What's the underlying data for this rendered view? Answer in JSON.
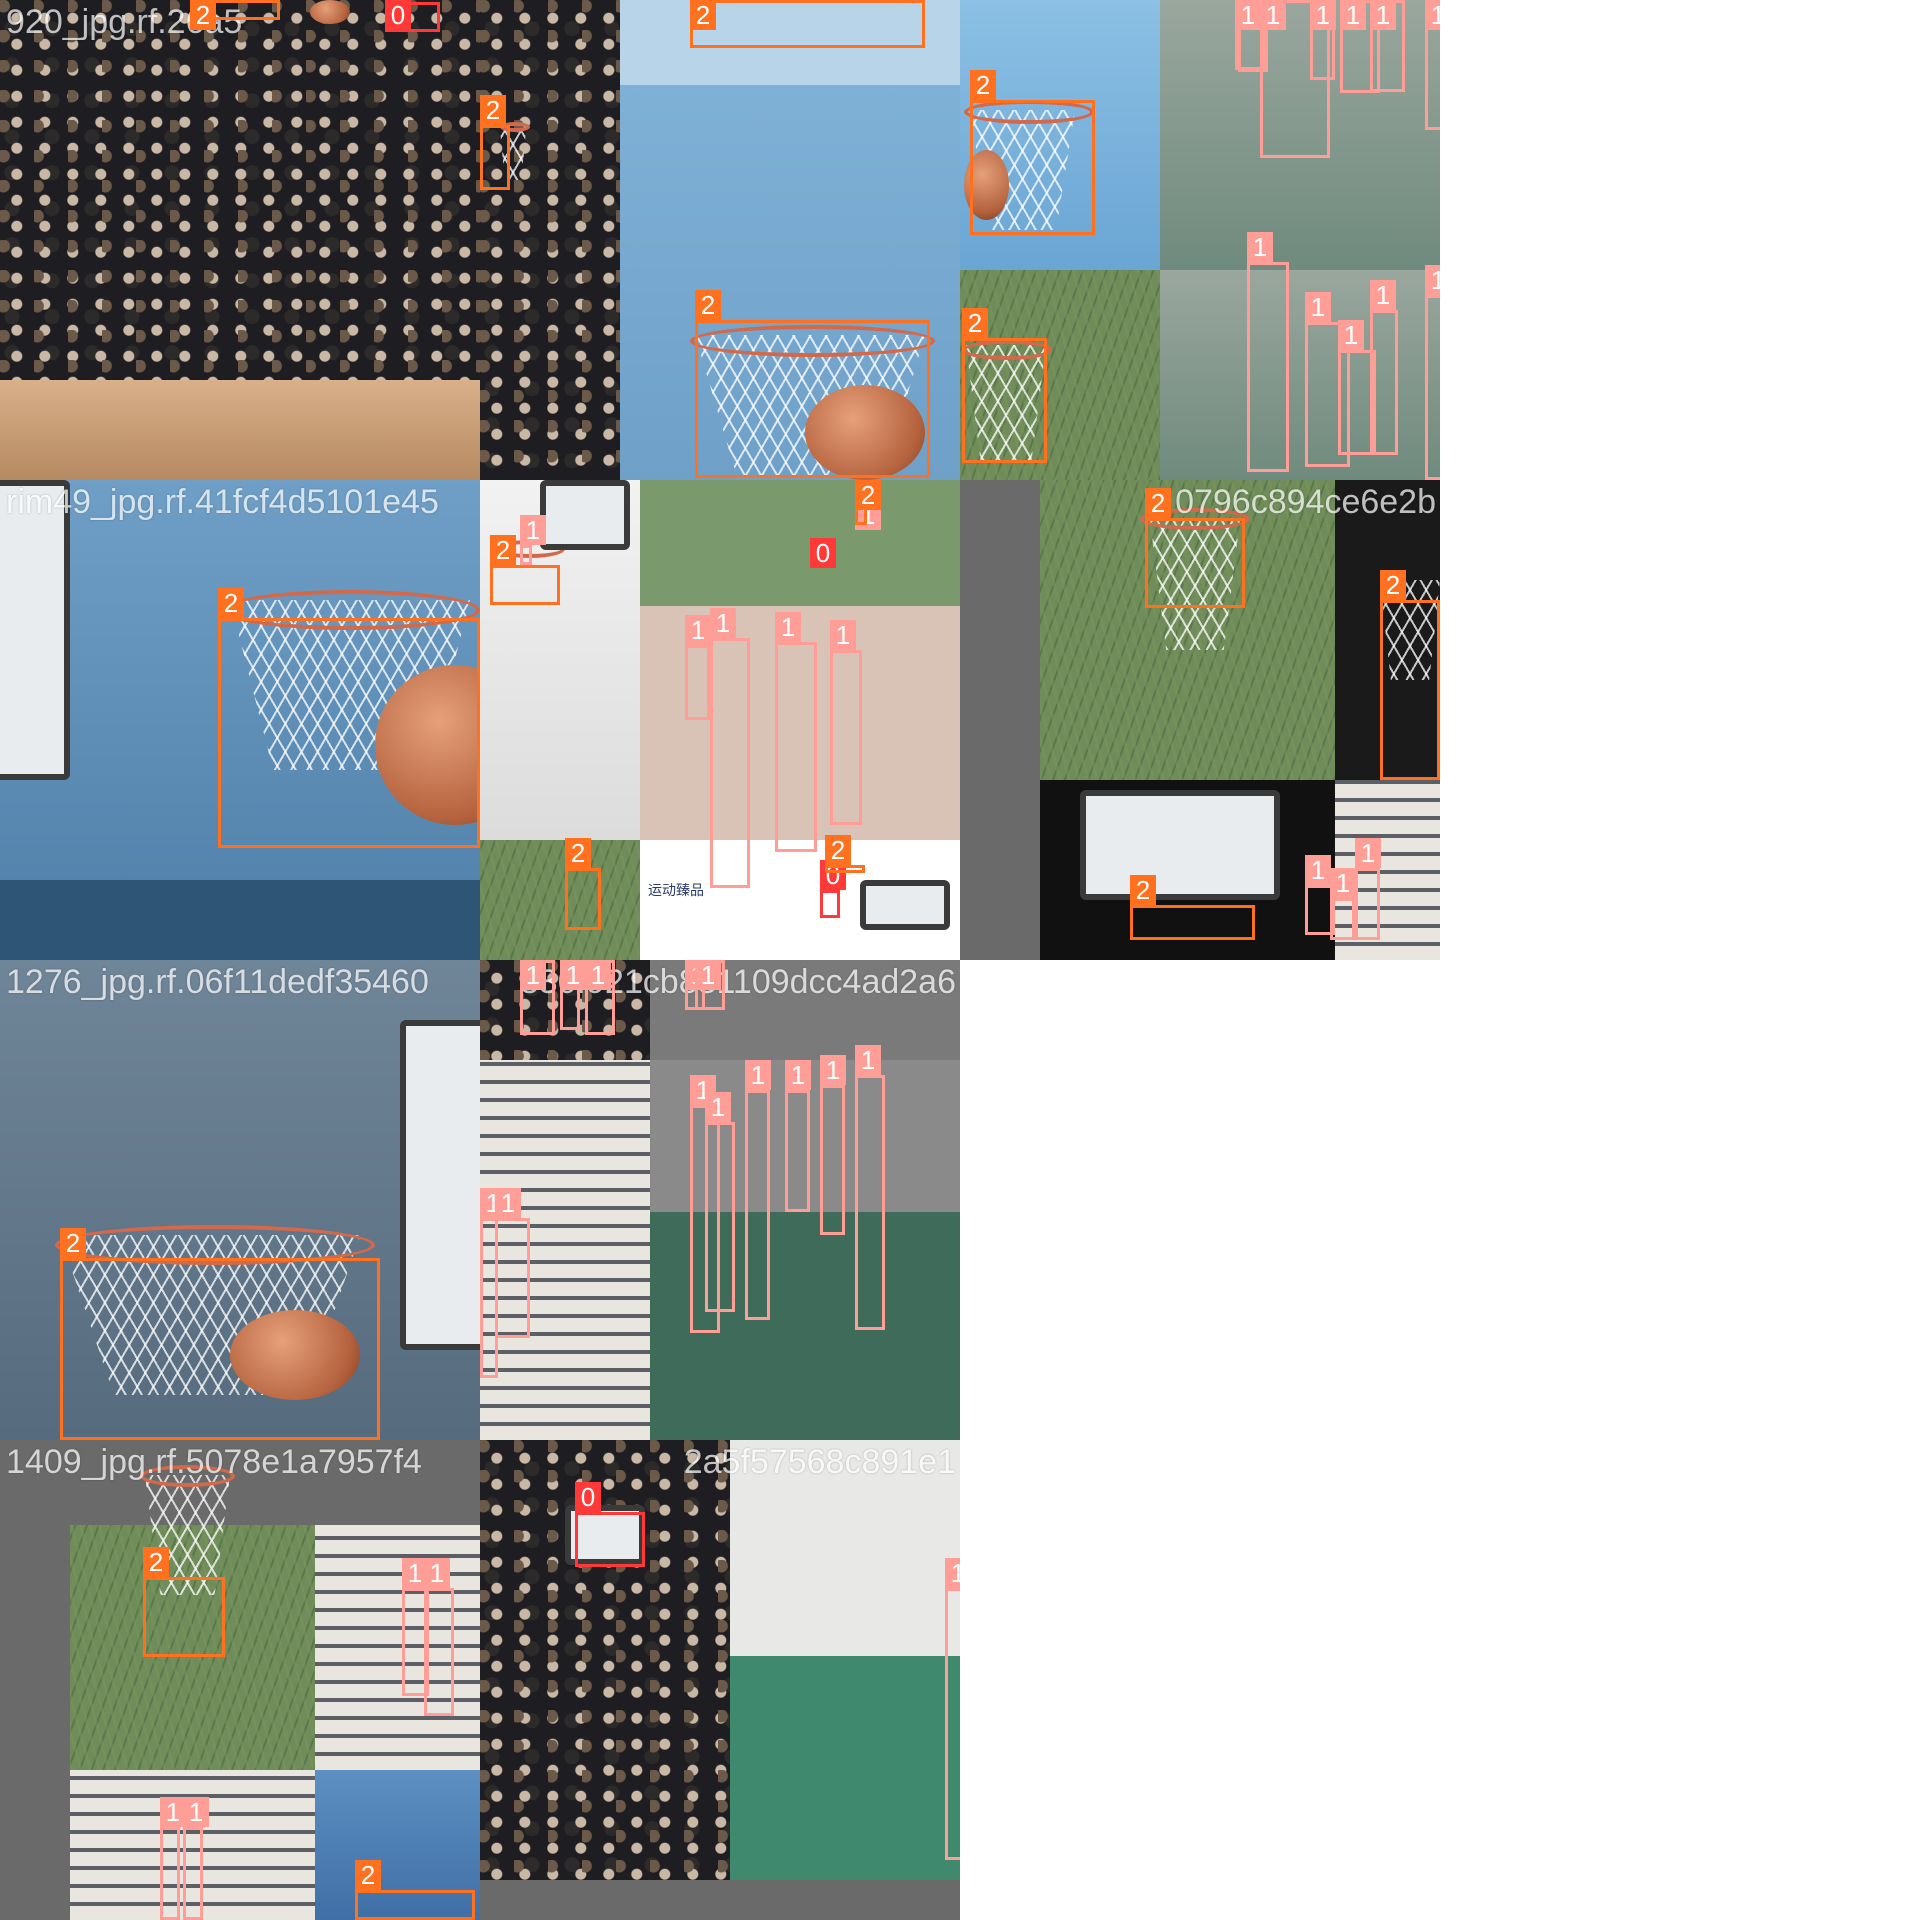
{
  "colors": {
    "class_0": "#ff3838",
    "class_1": "#ff9d97",
    "class_2": "#ff701f",
    "filename_text": "#ffffff"
  },
  "class_legend": [
    "0",
    "1",
    "2"
  ],
  "tiles": [
    {
      "filename": "920_jpg.rf.26a5",
      "scene": "dunk-arena",
      "detections": [
        {
          "cls": "2",
          "label": "2"
        },
        {
          "cls": "0",
          "label": "0"
        }
      ]
    },
    {
      "filename": "",
      "scene": "net-blue-sky",
      "detections": [
        {
          "cls": "2",
          "label": "2"
        },
        {
          "cls": "2",
          "label": "2"
        },
        {
          "cls": "2",
          "label": "2"
        }
      ]
    },
    {
      "filename": "",
      "scene": "court-players-orange",
      "detections": [
        {
          "cls": "2",
          "label": "2"
        },
        {
          "cls": "2",
          "label": "2"
        },
        {
          "cls": "1",
          "label": "1"
        },
        {
          "cls": "1",
          "label": "1"
        },
        {
          "cls": "1",
          "label": "1"
        },
        {
          "cls": "1",
          "label": "1"
        },
        {
          "cls": "1",
          "label": "1"
        },
        {
          "cls": "1",
          "label": "1"
        },
        {
          "cls": "1",
          "label": "1"
        },
        {
          "cls": "1",
          "label": "1"
        },
        {
          "cls": "1",
          "label": "1"
        },
        {
          "cls": "1",
          "label": "1"
        },
        {
          "cls": "1",
          "label": "1"
        },
        {
          "cls": "1",
          "label": "1"
        }
      ]
    },
    {
      "filename": "rim49_jpg.rf.41fcf4d5101e45",
      "scene": "rim-close-up",
      "detections": [
        {
          "cls": "2",
          "label": "2"
        }
      ]
    },
    {
      "filename": "",
      "scene": "outdoor-pink-jerseys",
      "detections": [
        {
          "cls": "2",
          "label": "2"
        },
        {
          "cls": "1",
          "label": "1"
        },
        {
          "cls": "1",
          "label": "1"
        },
        {
          "cls": "0",
          "label": "0"
        },
        {
          "cls": "1",
          "label": "1"
        },
        {
          "cls": "1",
          "label": "1"
        },
        {
          "cls": "1",
          "label": "1"
        },
        {
          "cls": "1",
          "label": "1"
        },
        {
          "cls": "2",
          "label": "2"
        },
        {
          "cls": "2",
          "label": "2"
        },
        {
          "cls": "0",
          "label": "0"
        },
        {
          "cls": "2",
          "label": "2"
        }
      ],
      "logo_text": "运动臻品"
    },
    {
      "filename": "",
      "scene": "hoops-dark",
      "detections": [
        {
          "cls": "2",
          "label": "2"
        },
        {
          "cls": "2",
          "label": "2"
        },
        {
          "cls": "2",
          "label": "2"
        },
        {
          "cls": "1",
          "label": "1"
        },
        {
          "cls": "1",
          "label": "1"
        },
        {
          "cls": "1",
          "label": "1"
        }
      ],
      "filename_tail": "0796c894ce6e2b"
    },
    {
      "filename": "1276_jpg.rf.06f11dedf35460",
      "scene": "rim-backboard",
      "detections": [
        {
          "cls": "2",
          "label": "2"
        }
      ]
    },
    {
      "filename": "",
      "scene": "campus-court-players",
      "detections": [
        {
          "cls": "1",
          "label": "1"
        },
        {
          "cls": "1",
          "label": "1"
        },
        {
          "cls": "1",
          "label": "1"
        },
        {
          "cls": "1",
          "label": "1"
        },
        {
          "cls": "1",
          "label": "1"
        },
        {
          "cls": "1",
          "label": "1"
        },
        {
          "cls": "1",
          "label": "1"
        },
        {
          "cls": "1",
          "label": "1"
        },
        {
          "cls": "1",
          "label": "1"
        },
        {
          "cls": "1",
          "label": "1"
        },
        {
          "cls": "1",
          "label": "1"
        },
        {
          "cls": "1",
          "label": "1"
        },
        {
          "cls": "1",
          "label": "1"
        }
      ],
      "filename_tail": "330f921cb881109dcc4ad2a6"
    },
    {
      "filename": "1409_jpg.rf.5078e1a7957f4",
      "scene": "mosaic-foliage-campus",
      "detections": [
        {
          "cls": "2",
          "label": "2"
        },
        {
          "cls": "1",
          "label": "1"
        },
        {
          "cls": "1",
          "label": "1"
        },
        {
          "cls": "1",
          "label": "1"
        },
        {
          "cls": "1",
          "label": "1"
        },
        {
          "cls": "2",
          "label": "2"
        }
      ]
    },
    {
      "filename": "",
      "scene": "dunk-and-court",
      "detections": [
        {
          "cls": "0",
          "label": "0"
        },
        {
          "cls": "1",
          "label": "1"
        }
      ],
      "filename_tail": "2a5f57568c891e1"
    }
  ]
}
